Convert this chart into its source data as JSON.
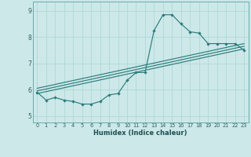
{
  "xlabel": "Humidex (Indice chaleur)",
  "bg_color": "#cce8e8",
  "grid_color": "#b0d8d8",
  "line_color": "#2e7d7d",
  "spine_color": "#6aacac",
  "xlim": [
    -0.5,
    23.5
  ],
  "ylim": [
    4.75,
    9.35
  ],
  "xticks": [
    0,
    1,
    2,
    3,
    4,
    5,
    6,
    7,
    8,
    9,
    10,
    11,
    12,
    13,
    14,
    15,
    16,
    17,
    18,
    19,
    20,
    21,
    22,
    23
  ],
  "yticks": [
    5,
    6,
    7,
    8,
    9
  ],
  "line1_x": [
    0,
    1,
    2,
    3,
    4,
    5,
    6,
    7,
    8,
    9,
    10,
    11,
    12,
    13,
    14,
    15,
    16,
    17,
    18,
    19,
    20,
    21,
    22,
    23
  ],
  "line1_y": [
    5.9,
    5.6,
    5.7,
    5.6,
    5.55,
    5.45,
    5.45,
    5.55,
    5.8,
    5.85,
    6.35,
    6.65,
    6.65,
    8.25,
    8.85,
    8.85,
    8.5,
    8.2,
    8.15,
    7.75,
    7.75,
    7.75,
    7.75,
    7.5
  ],
  "line2_x": [
    0,
    23
  ],
  "line2_y": [
    5.85,
    7.55
  ],
  "line3_x": [
    0,
    23
  ],
  "line3_y": [
    5.95,
    7.65
  ],
  "line4_x": [
    0,
    23
  ],
  "line4_y": [
    6.05,
    7.75
  ]
}
